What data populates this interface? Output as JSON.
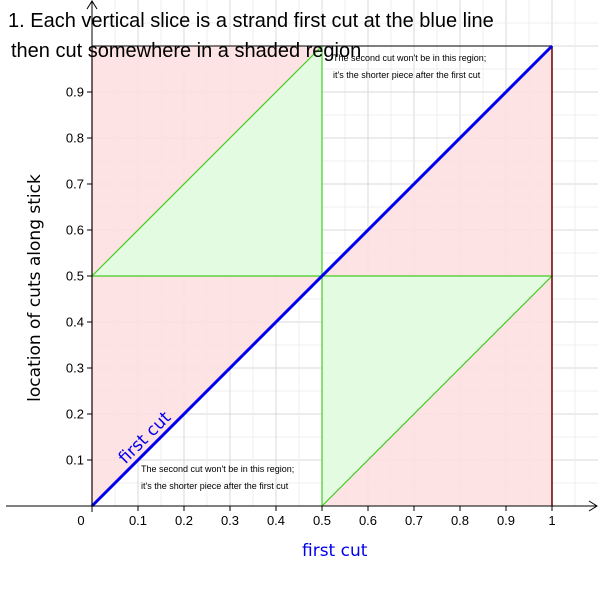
{
  "title_lines": [
    "1. Each vertical slice is a strand first cut at the blue line",
    "then cut somewhere in a shaded region"
  ],
  "colors": {
    "blue": "#0000ee",
    "red_fill": "#fde0e0",
    "green_fill": "#e0fce0",
    "green_line": "#44cc22",
    "dark_red": "#660000",
    "grid": "#e0e0e0"
  },
  "chart_data": {
    "type": "area",
    "xlabel": "first cut",
    "ylabel": "location of cuts along stick",
    "xlim": [
      0,
      1
    ],
    "ylim": [
      0,
      1
    ],
    "x_ticks": [
      "0.1",
      "0.2",
      "0.3",
      "0.4",
      "0.5",
      "0.6",
      "0.7",
      "0.8",
      "0.9",
      "1"
    ],
    "y_ticks": [
      "0.1",
      "0.2",
      "0.3",
      "0.4",
      "0.5",
      "0.6",
      "0.7",
      "0.8",
      "0.9"
    ],
    "origin_label": "0",
    "grid": true,
    "diagonal": {
      "label": "first cut",
      "from": [
        0,
        0
      ],
      "to": [
        1,
        1
      ]
    },
    "red_regions": [
      [
        [
          0,
          0
        ],
        [
          0,
          1
        ],
        [
          0.5,
          1
        ],
        [
          0.5,
          0.5
        ]
      ],
      [
        [
          0.5,
          0.5
        ],
        [
          1,
          1
        ],
        [
          1,
          0
        ],
        [
          0.5,
          0
        ]
      ]
    ],
    "green_regions": [
      [
        [
          0,
          0.5
        ],
        [
          0.5,
          1
        ],
        [
          0.5,
          0.5
        ]
      ],
      [
        [
          0.5,
          0
        ],
        [
          0.5,
          0.5
        ],
        [
          1,
          0.5
        ]
      ]
    ],
    "green_lines": [
      [
        [
          0,
          0.5
        ],
        [
          1,
          0.5
        ]
      ],
      [
        [
          0.5,
          0
        ],
        [
          0.5,
          1
        ]
      ],
      [
        [
          0,
          0.5
        ],
        [
          0.5,
          1
        ]
      ],
      [
        [
          0.5,
          0
        ],
        [
          1,
          0.5
        ]
      ]
    ],
    "annotations": {
      "top_right": {
        "lines": [
          "The second cut won't be in this region;",
          "it's the shorter piece after the first cut"
        ]
      },
      "bottom_left": {
        "lines": [
          "The second cut won't be in this region;",
          "it's the shorter piece after the first cut"
        ]
      }
    }
  }
}
